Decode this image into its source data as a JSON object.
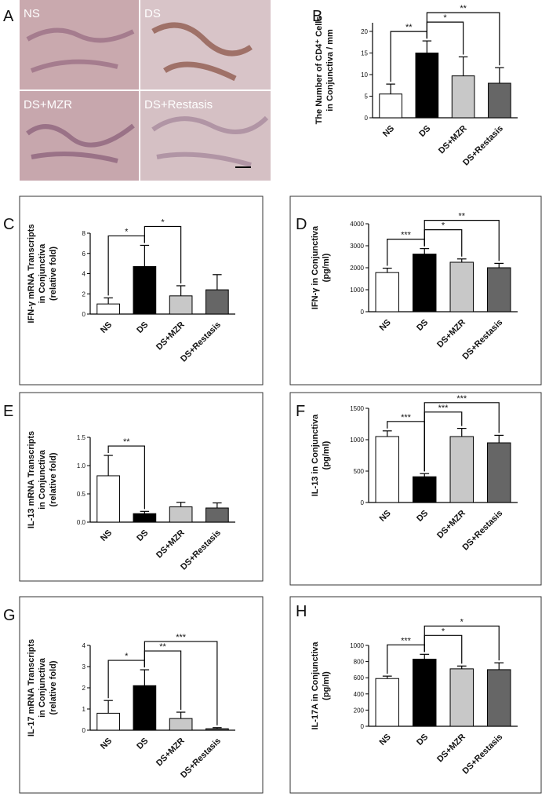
{
  "panel_a": {
    "letter": "A",
    "labels": [
      "NS",
      "DS",
      "DS+MZR",
      "DS+Restasis"
    ]
  },
  "chart_data": [
    {
      "type": "bar",
      "panel": "B",
      "y_label": [
        "The Number of CD4⁺ Cells",
        "in Conjunctiva / mm"
      ],
      "categories": [
        "NS",
        "DS",
        "DS+MZR",
        "DS+Restasis"
      ],
      "values": [
        5.5,
        15,
        9.7,
        8
      ],
      "errors": [
        2.3,
        2.8,
        4.4,
        3.6
      ],
      "colors": [
        "#ffffff",
        "#000000",
        "#c8c8c8",
        "#666666"
      ],
      "ylim": [
        0,
        22
      ],
      "yticks": [
        0,
        5,
        10,
        15,
        20
      ],
      "annotations": [
        {
          "label": "**",
          "between": [
            "NS",
            "DS"
          ]
        },
        {
          "label": "*",
          "between": [
            "DS",
            "DS+MZR"
          ]
        },
        {
          "label": "**",
          "between": [
            "DS",
            "DS+Restasis"
          ]
        }
      ]
    },
    {
      "type": "bar",
      "panel": "C",
      "y_label": [
        "IFN-γ mRNA Transcripts",
        "in Conjunctiva",
        "(relative fold)"
      ],
      "categories": [
        "NS",
        "DS",
        "DS+MZR",
        "DS+Restasis"
      ],
      "values": [
        1.0,
        4.7,
        1.8,
        2.4
      ],
      "errors": [
        0.6,
        2.1,
        1.0,
        1.5
      ],
      "colors": [
        "#ffffff",
        "#000000",
        "#c8c8c8",
        "#666666"
      ],
      "ylim": [
        0,
        8
      ],
      "yticks": [
        0,
        2,
        4,
        6,
        8
      ],
      "annotations": [
        {
          "label": "*",
          "between": [
            "NS",
            "DS"
          ]
        },
        {
          "label": "*",
          "between": [
            "DS",
            "DS+MZR"
          ]
        }
      ]
    },
    {
      "type": "bar",
      "panel": "D",
      "y_label": [
        "IFN-γ in Conjunctiva",
        "(pg/ml)"
      ],
      "categories": [
        "NS",
        "DS",
        "DS+MZR",
        "DS+Restasis"
      ],
      "values": [
        1780,
        2620,
        2250,
        2000
      ],
      "errors": [
        200,
        250,
        150,
        200
      ],
      "colors": [
        "#ffffff",
        "#000000",
        "#c8c8c8",
        "#666666"
      ],
      "ylim": [
        0,
        4000
      ],
      "yticks": [
        0,
        1000,
        2000,
        3000,
        4000
      ],
      "annotations": [
        {
          "label": "***",
          "between": [
            "NS",
            "DS"
          ]
        },
        {
          "label": "*",
          "between": [
            "DS",
            "DS+MZR"
          ]
        },
        {
          "label": "**",
          "between": [
            "DS",
            "DS+Restasis"
          ]
        }
      ]
    },
    {
      "type": "bar",
      "panel": "E",
      "y_label": [
        "IL-13 mRNA Transcripts",
        "in Conjunctiva",
        "(relative fold)"
      ],
      "categories": [
        "NS",
        "DS",
        "DS+MZR",
        "DS+Restasis"
      ],
      "values": [
        0.82,
        0.15,
        0.27,
        0.25
      ],
      "errors": [
        0.36,
        0.04,
        0.08,
        0.09
      ],
      "colors": [
        "#ffffff",
        "#000000",
        "#c8c8c8",
        "#666666"
      ],
      "ylim": [
        0,
        1.5
      ],
      "yticks": [
        {
          "value": 0,
          "label": "0.0"
        },
        0.5,
        {
          "value": 1,
          "label": "1.0"
        },
        1.5
      ],
      "annotations": [
        {
          "label": "**",
          "between": [
            "NS",
            "DS"
          ]
        }
      ]
    },
    {
      "type": "bar",
      "panel": "F",
      "y_label": [
        "IL-13 in Conjunctiva",
        "(pg/ml)"
      ],
      "categories": [
        "NS",
        "DS",
        "DS+MZR",
        "DS+Restasis"
      ],
      "values": [
        1050,
        410,
        1050,
        950
      ],
      "errors": [
        90,
        50,
        130,
        120
      ],
      "colors": [
        "#ffffff",
        "#000000",
        "#c8c8c8",
        "#666666"
      ],
      "ylim": [
        0,
        1500
      ],
      "yticks": [
        0,
        500,
        1000,
        1500
      ],
      "annotations": [
        {
          "label": "***",
          "between": [
            "NS",
            "DS"
          ]
        },
        {
          "label": "***",
          "between": [
            "DS",
            "DS+MZR"
          ]
        },
        {
          "label": "***",
          "between": [
            "DS",
            "DS+Restasis"
          ]
        }
      ]
    },
    {
      "type": "bar",
      "panel": "G",
      "y_label": [
        "IL-17 mRNA Transcripts",
        "in Conjunctiva",
        "(relative fold)"
      ],
      "categories": [
        "NS",
        "DS",
        "DS+MZR",
        "DS+Restasis"
      ],
      "values": [
        0.8,
        2.1,
        0.55,
        0.07
      ],
      "errors": [
        0.6,
        0.75,
        0.3,
        0.05
      ],
      "colors": [
        "#ffffff",
        "#000000",
        "#c8c8c8",
        "#666666"
      ],
      "ylim": [
        0,
        4
      ],
      "yticks": [
        0,
        1,
        2,
        3,
        4
      ],
      "annotations": [
        {
          "label": "*",
          "between": [
            "NS",
            "DS"
          ]
        },
        {
          "label": "**",
          "between": [
            "DS",
            "DS+MZR"
          ]
        },
        {
          "label": "***",
          "between": [
            "DS",
            "DS+Restasis"
          ]
        }
      ]
    },
    {
      "type": "bar",
      "panel": "H",
      "y_label": [
        "IL-17A in Conjunctiva",
        "(pg/ml)"
      ],
      "categories": [
        "NS",
        "DS",
        "DS+MZR",
        "DS+Restasis"
      ],
      "values": [
        590,
        830,
        710,
        700
      ],
      "errors": [
        30,
        60,
        35,
        85
      ],
      "colors": [
        "#ffffff",
        "#000000",
        "#c8c8c8",
        "#666666"
      ],
      "ylim": [
        0,
        1000
      ],
      "yticks": [
        0,
        200,
        400,
        600,
        800,
        1000
      ],
      "annotations": [
        {
          "label": "***",
          "between": [
            "NS",
            "DS"
          ]
        },
        {
          "label": "*",
          "between": [
            "DS",
            "DS+MZR"
          ]
        },
        {
          "label": "*",
          "between": [
            "DS",
            "DS+Restasis"
          ]
        }
      ]
    }
  ]
}
